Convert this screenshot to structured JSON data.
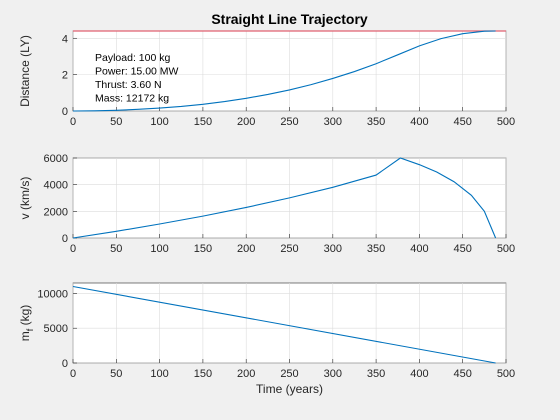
{
  "figure": {
    "background": "#f0f0f0",
    "line_color": "#0072bd",
    "reference_line_color": "#e06070"
  },
  "chart_data": [
    {
      "type": "line",
      "title": "Straight Line Trajectory",
      "xlabel": "",
      "ylabel": "Distance (LY)",
      "xlim": [
        0,
        500
      ],
      "ylim": [
        0,
        4.4
      ],
      "xticks": [
        0,
        50,
        100,
        150,
        200,
        250,
        300,
        350,
        400,
        450,
        500
      ],
      "yticks": [
        0,
        2,
        4
      ],
      "grid": true,
      "reference_lines": [
        {
          "y": 4.4,
          "color": "#e06070"
        }
      ],
      "annotations": [
        "Payload: 100 kg",
        "Power: 15.00 MW",
        "Thrust: 3.60 N",
        "Mass: 12172 kg"
      ],
      "series": [
        {
          "x": [
            0,
            25,
            50,
            75,
            100,
            125,
            150,
            175,
            200,
            225,
            250,
            275,
            300,
            325,
            350,
            375,
            400,
            425,
            450,
            475,
            488
          ],
          "y": [
            0,
            0.01,
            0.04,
            0.09,
            0.16,
            0.25,
            0.37,
            0.52,
            0.7,
            0.91,
            1.16,
            1.45,
            1.79,
            2.17,
            2.6,
            3.09,
            3.58,
            3.98,
            4.25,
            4.39,
            4.4
          ]
        }
      ]
    },
    {
      "type": "line",
      "title": "",
      "xlabel": "",
      "ylabel": "v (km/s)",
      "xlim": [
        0,
        500
      ],
      "ylim": [
        0,
        6000
      ],
      "xticks": [
        0,
        50,
        100,
        150,
        200,
        250,
        300,
        350,
        400,
        450,
        500
      ],
      "yticks": [
        0,
        2000,
        4000,
        6000
      ],
      "grid": true,
      "series": [
        {
          "x": [
            0,
            50,
            100,
            150,
            200,
            250,
            300,
            350,
            378,
            400,
            420,
            440,
            460,
            475,
            488
          ],
          "y": [
            0,
            500,
            1050,
            1640,
            2290,
            3010,
            3800,
            4720,
            6000,
            5500,
            4950,
            4220,
            3200,
            2000,
            0
          ]
        }
      ]
    },
    {
      "type": "line",
      "title": "",
      "xlabel": "Time (years)",
      "ylabel": "m",
      "ylabel_subscript": "f",
      "ylabel_suffix": " (kg)",
      "xlim": [
        0,
        500
      ],
      "ylim": [
        0,
        11500
      ],
      "xticks": [
        0,
        50,
        100,
        150,
        200,
        250,
        300,
        350,
        400,
        450,
        500
      ],
      "yticks": [
        0,
        5000,
        10000
      ],
      "grid": true,
      "series": [
        {
          "x": [
            0,
            488
          ],
          "y": [
            11000,
            0
          ]
        }
      ]
    }
  ]
}
